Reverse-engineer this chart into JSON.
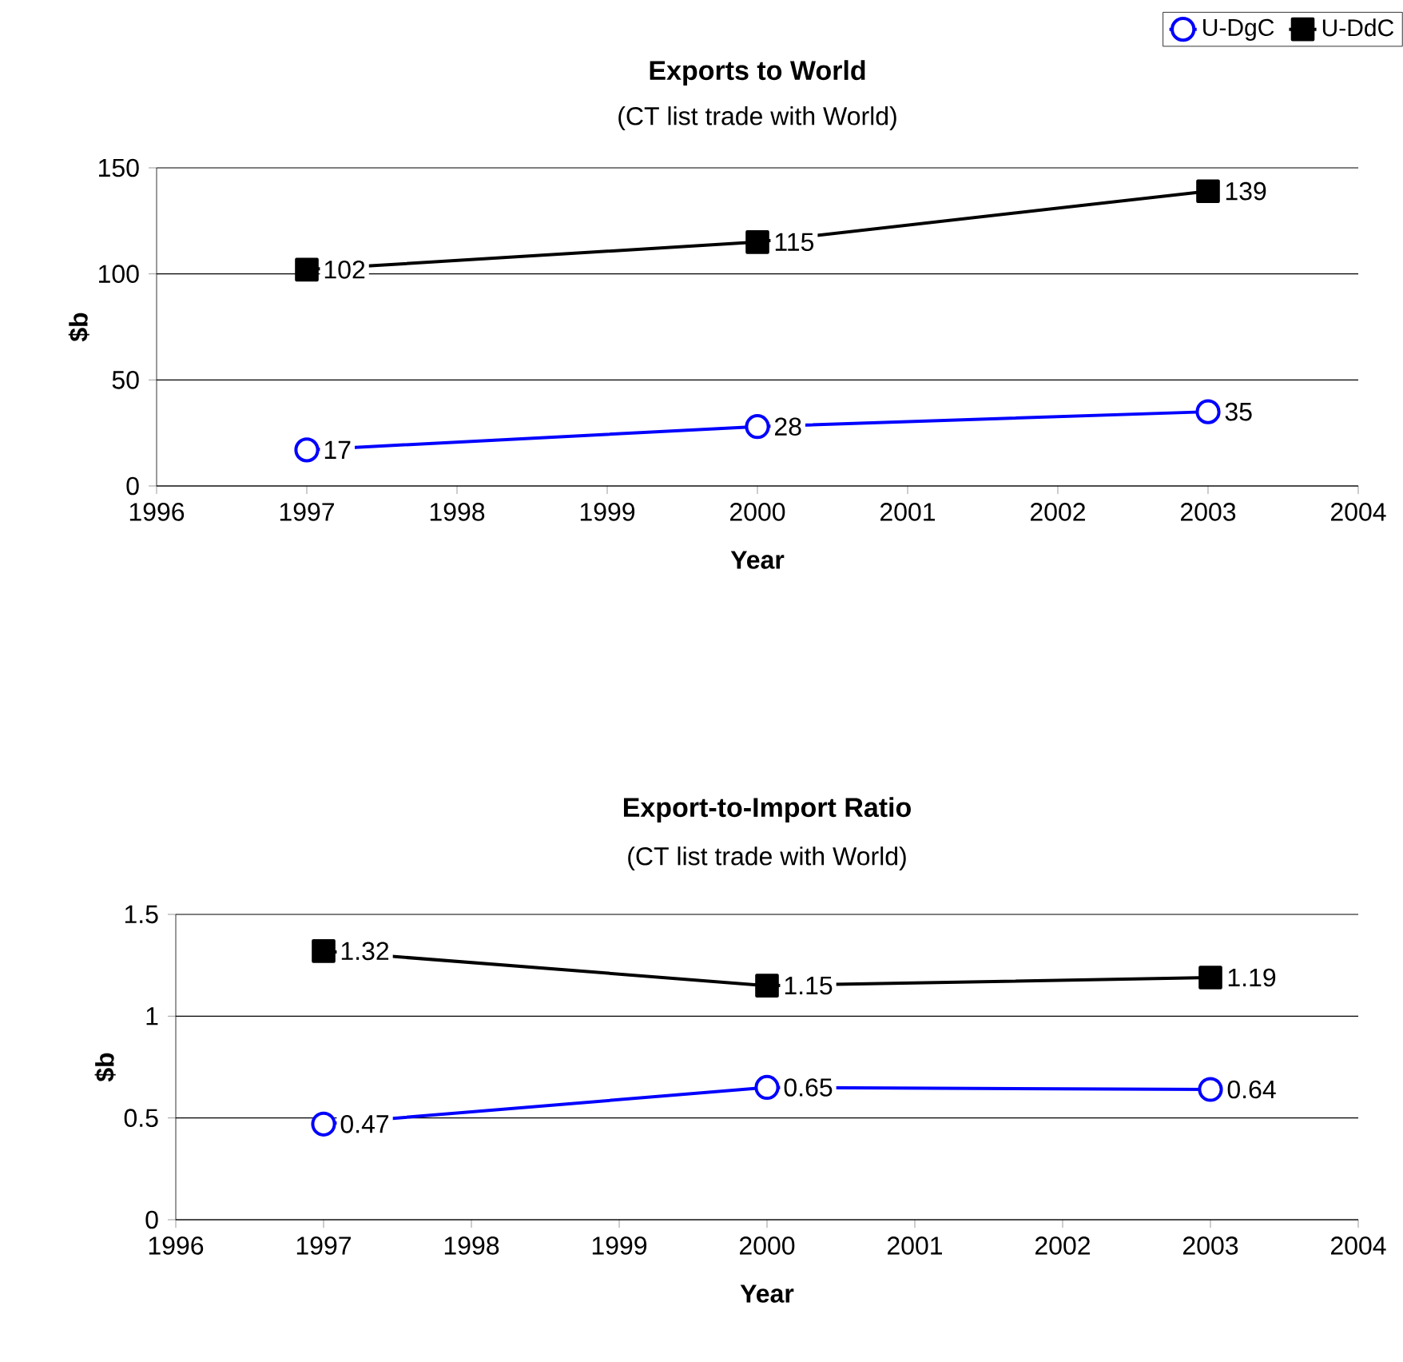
{
  "chart_data": [
    {
      "type": "line",
      "title": "Exports to World",
      "subtitle": "(CT list trade with World)",
      "xlabel": "Year",
      "ylabel": "$b",
      "x": [
        1997,
        2000,
        2003
      ],
      "series": [
        {
          "name": "U-DgC",
          "color": "#0000ff",
          "marker": "circle",
          "values": [
            17,
            28,
            35
          ]
        },
        {
          "name": "U-DdC",
          "color": "#000000",
          "marker": "square",
          "values": [
            102,
            115,
            139
          ]
        }
      ],
      "xlim": [
        1996,
        2004
      ],
      "xticks": [
        1996,
        1997,
        1998,
        1999,
        2000,
        2001,
        2002,
        2003,
        2004
      ],
      "ylim": [
        0,
        150
      ],
      "yticks": [
        0,
        50,
        100,
        150
      ],
      "grid": "y",
      "legend": "top right",
      "data_labels": true
    },
    {
      "type": "line",
      "title": "Export-to-Import Ratio",
      "subtitle": "(CT list trade with World)",
      "xlabel": "Year",
      "ylabel": "$b",
      "x": [
        1997,
        2000,
        2003
      ],
      "series": [
        {
          "color": "#0000ff",
          "marker": "circle",
          "values": [
            0.47,
            0.65,
            0.64
          ]
        },
        {
          "color": "#000000",
          "marker": "square",
          "values": [
            1.32,
            1.15,
            1.19
          ]
        }
      ],
      "xlim": [
        1996,
        2004
      ],
      "xticks": [
        1996,
        1997,
        1998,
        1999,
        2000,
        2001,
        2002,
        2003,
        2004
      ],
      "ylim": [
        0,
        1.5
      ],
      "yticks": [
        0,
        0.5,
        1,
        1.5
      ],
      "grid": "y",
      "data_labels": true
    }
  ]
}
